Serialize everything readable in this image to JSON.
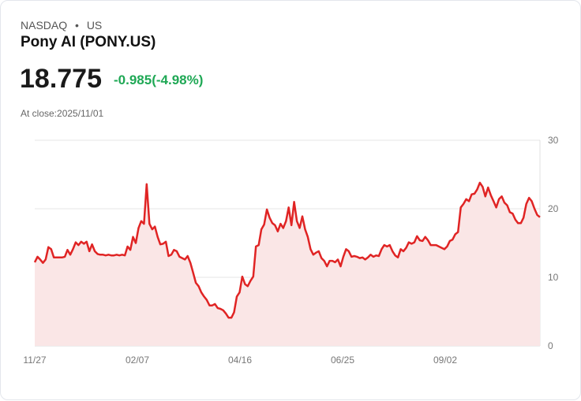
{
  "header": {
    "exchange": "NASDAQ",
    "separator": "•",
    "market": "US",
    "name": "Pony AI (PONY.US)",
    "price": "18.775",
    "change": "-0.985(-4.98%)",
    "close_label": "At close:2025/11/01"
  },
  "colors": {
    "line": "#e02424",
    "fill": "#fae6e6",
    "positive": "#1fa855"
  },
  "chart_data": {
    "type": "area",
    "title": "Pony AI (PONY.US)",
    "xlabel": "",
    "ylabel": "",
    "ylim": [
      0,
      30
    ],
    "y_ticks": [
      "0",
      "10",
      "20",
      "30"
    ],
    "x_ticks": [
      "11/27",
      "02/07",
      "04/16",
      "06/25",
      "09/02"
    ],
    "grid": true,
    "values": [
      12.2,
      13.0,
      12.6,
      12.1,
      12.6,
      14.4,
      14.1,
      12.9,
      12.9,
      12.9,
      12.9,
      13.0,
      14.0,
      13.3,
      14.1,
      15.1,
      14.7,
      15.2,
      14.9,
      15.2,
      13.8,
      14.8,
      13.8,
      13.4,
      13.3,
      13.3,
      13.2,
      13.3,
      13.2,
      13.2,
      13.3,
      13.2,
      13.3,
      13.2,
      14.5,
      14.0,
      15.9,
      15.0,
      17.2,
      18.2,
      17.8,
      23.6,
      17.8,
      17.0,
      17.4,
      15.9,
      14.8,
      14.9,
      15.2,
      13.1,
      13.3,
      14.0,
      13.8,
      13.0,
      12.8,
      12.6,
      13.1,
      12.1,
      10.7,
      9.2,
      8.7,
      7.8,
      7.2,
      6.7,
      5.9,
      5.9,
      6.1,
      5.5,
      5.4,
      5.2,
      4.7,
      4.1,
      4.1,
      4.9,
      7.2,
      7.8,
      10.1,
      9.0,
      8.7,
      9.5,
      10.1,
      14.5,
      14.7,
      17.0,
      17.7,
      19.9,
      18.7,
      17.9,
      17.6,
      16.7,
      17.8,
      17.2,
      18.2,
      20.2,
      17.6,
      21.0,
      18.2,
      17.2,
      18.9,
      17.0,
      15.9,
      14.1,
      13.3,
      13.6,
      13.8,
      12.8,
      12.4,
      11.6,
      12.4,
      12.4,
      12.2,
      12.6,
      11.6,
      13.0,
      14.1,
      13.8,
      13.0,
      13.1,
      13.0,
      12.8,
      12.9,
      12.6,
      12.9,
      13.3,
      13.0,
      13.2,
      13.1,
      14.1,
      14.7,
      14.5,
      14.7,
      13.8,
      13.2,
      12.9,
      14.1,
      13.8,
      14.3,
      15.1,
      14.9,
      15.1,
      16.0,
      15.4,
      15.3,
      15.9,
      15.4,
      14.7,
      14.7,
      14.7,
      14.5,
      14.3,
      14.1,
      14.5,
      15.3,
      15.5,
      16.3,
      16.6,
      20.2,
      20.7,
      21.4,
      21.1,
      22.1,
      22.2,
      22.8,
      23.8,
      23.2,
      21.8,
      23.1,
      22.0,
      21.1,
      20.2,
      21.4,
      21.8,
      20.9,
      20.5,
      19.5,
      19.3,
      18.4,
      17.9,
      17.9,
      18.7,
      20.7,
      21.6,
      21.1,
      20.0,
      19.1,
      18.775
    ]
  }
}
